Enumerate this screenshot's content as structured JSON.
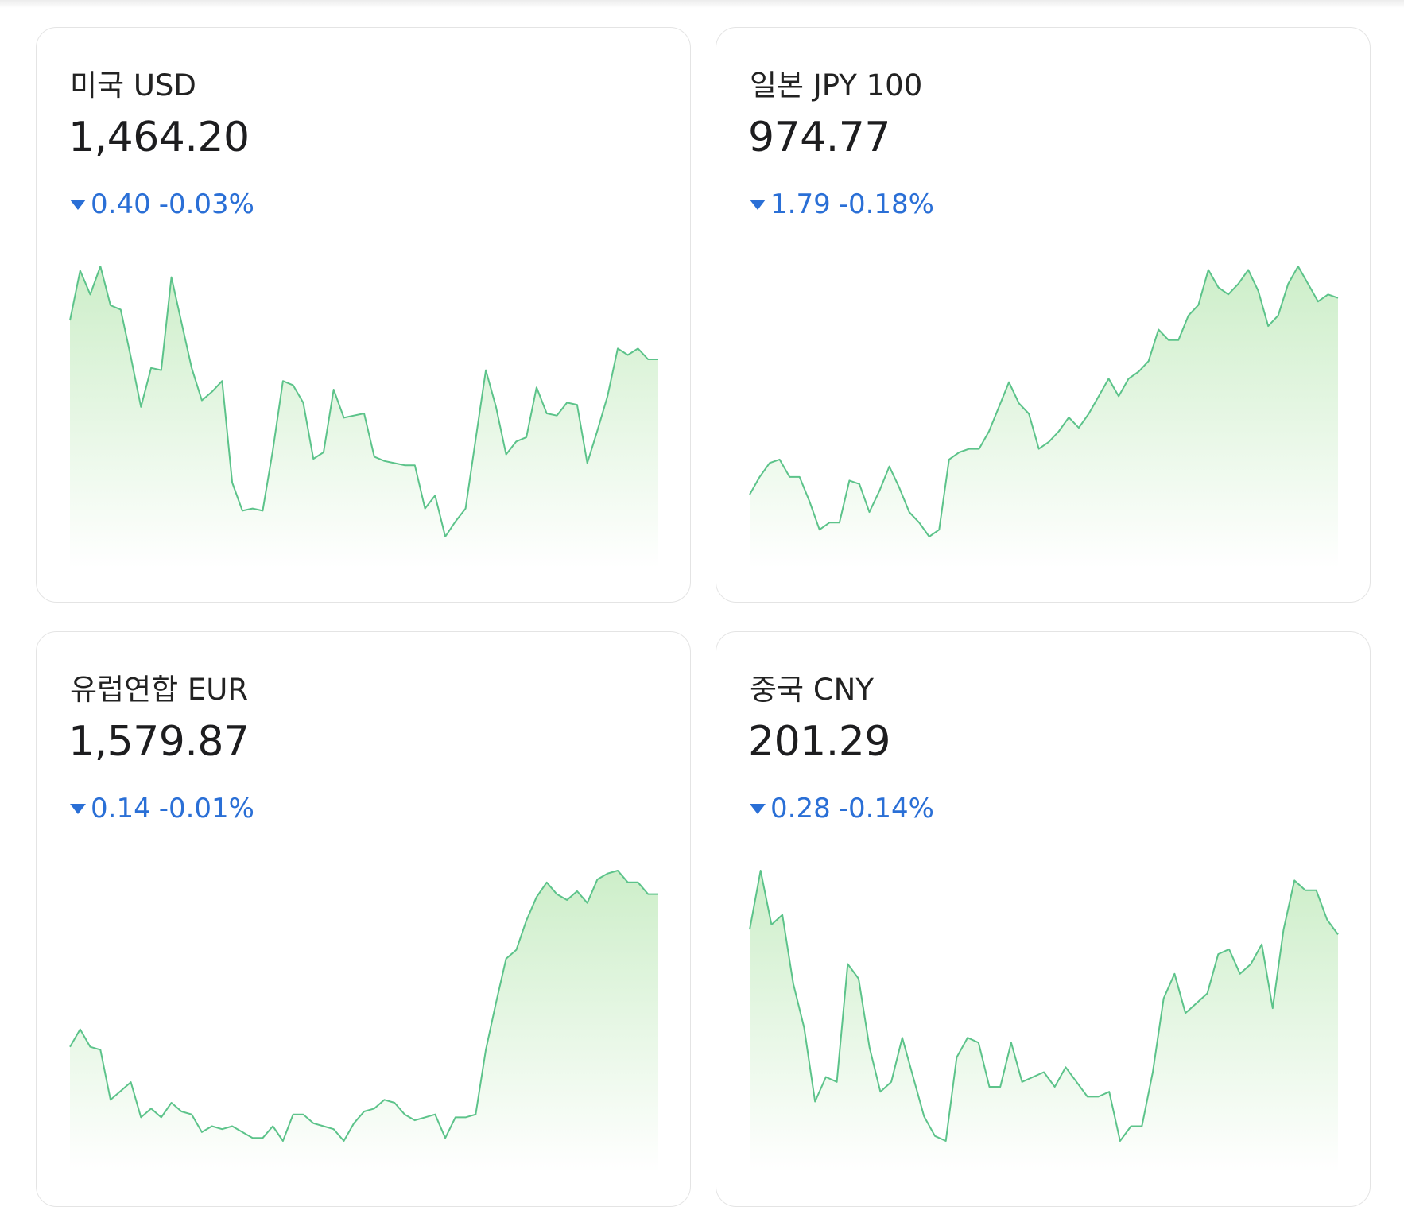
{
  "colors": {
    "line": "#5cc38a",
    "fill_top": "#cdeec9",
    "fill_bottom": "#ffffff",
    "down": "#2a6fd6"
  },
  "cards": [
    {
      "name": "미국 USD",
      "rate": "1,464.20",
      "change": "0.40",
      "change_pct": "-0.03%",
      "direction": "down",
      "chart_data": {
        "type": "area",
        "values": [
          1468.6,
          1470.9,
          1469.8,
          1471.1,
          1469.3,
          1469.1,
          1466.9,
          1464.6,
          1466.4,
          1466.3,
          1470.6,
          1468.5,
          1466.4,
          1464.9,
          1465.3,
          1465.8,
          1461.1,
          1459.8,
          1459.9,
          1459.8,
          1462.6,
          1465.8,
          1465.6,
          1464.8,
          1462.2,
          1462.5,
          1465.4,
          1464.1,
          1464.2,
          1464.3,
          1462.3,
          1462.1,
          1462.0,
          1461.9,
          1461.9,
          1459.9,
          1460.5,
          1458.6,
          1459.3,
          1459.9,
          1463.1,
          1466.3,
          1464.6,
          1462.4,
          1463.0,
          1463.2,
          1465.5,
          1464.3,
          1464.2,
          1464.8,
          1464.7,
          1462.0,
          1463.5,
          1465.1,
          1467.3,
          1467.0,
          1467.3,
          1466.8,
          1466.8
        ]
      }
    },
    {
      "name": "일본 JPY 100",
      "rate": "974.77",
      "change": "1.79",
      "change_pct": "-0.18%",
      "direction": "down",
      "chart_data": {
        "type": "area",
        "values": [
          965.8,
          966.3,
          966.7,
          966.8,
          966.3,
          966.3,
          965.6,
          964.8,
          965.0,
          965.0,
          966.2,
          966.1,
          965.3,
          965.9,
          966.6,
          966.0,
          965.3,
          965.0,
          964.6,
          964.8,
          966.8,
          967.0,
          967.1,
          967.1,
          967.6,
          968.3,
          969.0,
          968.4,
          968.1,
          967.1,
          967.3,
          967.6,
          968.0,
          967.7,
          968.1,
          968.6,
          969.1,
          968.6,
          969.1,
          969.3,
          969.6,
          970.5,
          970.2,
          970.2,
          970.9,
          971.2,
          972.2,
          971.7,
          971.5,
          971.8,
          972.2,
          971.6,
          970.6,
          970.9,
          971.8,
          972.3,
          971.8,
          971.3,
          971.5,
          971.4
        ]
      }
    },
    {
      "name": "유럽연합 EUR",
      "rate": "1,579.87",
      "change": "0.14",
      "change_pct": "-0.01%",
      "direction": "down",
      "chart_data": {
        "type": "area",
        "values": [
          1572.3,
          1572.9,
          1572.3,
          1572.2,
          1570.5,
          1570.8,
          1571.1,
          1569.9,
          1570.2,
          1569.9,
          1570.4,
          1570.1,
          1570.0,
          1569.4,
          1569.6,
          1569.5,
          1569.6,
          1569.4,
          1569.2,
          1569.2,
          1569.6,
          1569.1,
          1570.0,
          1570.0,
          1569.7,
          1569.6,
          1569.5,
          1569.1,
          1569.7,
          1570.1,
          1570.2,
          1570.5,
          1570.4,
          1570.0,
          1569.8,
          1569.9,
          1570.0,
          1569.2,
          1569.9,
          1569.9,
          1570.0,
          1572.2,
          1573.8,
          1575.3,
          1575.6,
          1576.6,
          1577.4,
          1577.9,
          1577.5,
          1577.3,
          1577.6,
          1577.2,
          1578.0,
          1578.2,
          1578.3,
          1577.9,
          1577.9,
          1577.5,
          1577.5
        ]
      }
    },
    {
      "name": "중국 CNY",
      "rate": "201.29",
      "change": "0.28",
      "change_pct": "-0.14%",
      "direction": "down",
      "chart_data": {
        "type": "area",
        "values": [
          201.63,
          201.75,
          201.64,
          201.66,
          201.52,
          201.43,
          201.28,
          201.33,
          201.32,
          201.56,
          201.53,
          201.39,
          201.3,
          201.32,
          201.41,
          201.33,
          201.25,
          201.21,
          201.2,
          201.37,
          201.41,
          201.4,
          201.31,
          201.31,
          201.4,
          201.32,
          201.33,
          201.34,
          201.31,
          201.35,
          201.32,
          201.29,
          201.29,
          201.3,
          201.2,
          201.23,
          201.23,
          201.34,
          201.49,
          201.54,
          201.46,
          201.48,
          201.5,
          201.58,
          201.59,
          201.54,
          201.56,
          201.6,
          201.47,
          201.63,
          201.73,
          201.71,
          201.71,
          201.65,
          201.62
        ]
      }
    }
  ]
}
